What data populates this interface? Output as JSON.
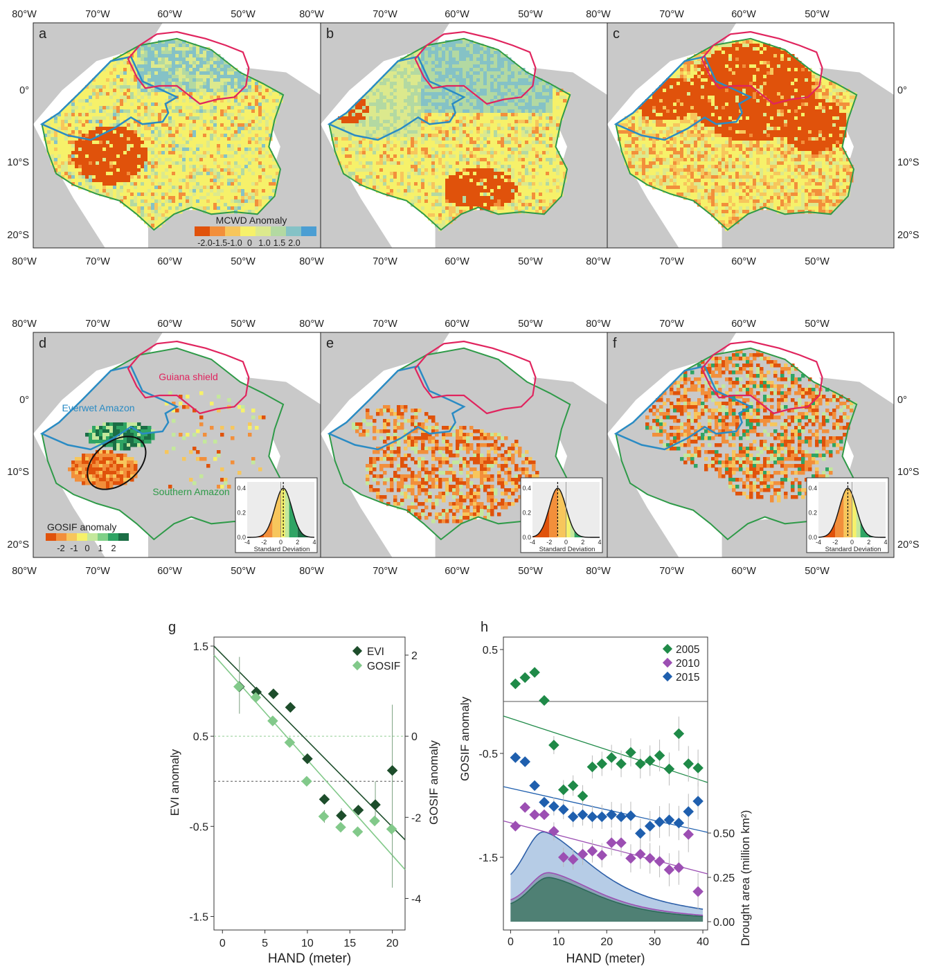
{
  "map_panels": {
    "letters": [
      "a",
      "b",
      "c",
      "d",
      "e",
      "f"
    ],
    "lon_ticks": [
      "80°W",
      "70°W",
      "60°W",
      "50°W"
    ],
    "lat_ticks": [
      "0°",
      "10°S",
      "20°S"
    ],
    "mcwd_legend": {
      "title": "MCWD Anomaly",
      "labels": [
        "-2.0",
        "-1.5",
        "-1.0",
        "0",
        "1.0",
        "1.5",
        "2.0"
      ]
    },
    "gosif_legend": {
      "title": "GOSIF anomaly",
      "labels": [
        "-2",
        "-1",
        "0",
        "1",
        "2"
      ]
    },
    "region_labels": {
      "guiana": "Guiana shield",
      "everwet": "Everwet Amazon",
      "southern": "Southern Amazon"
    },
    "inset": {
      "xlabel": "Standard Deviation",
      "xticks": [
        "-4",
        "-2",
        "0",
        "2",
        "4"
      ],
      "yticks": [
        "0.0",
        "0.2",
        "0.4"
      ]
    },
    "colors": {
      "land": "#c9c9c9",
      "guiana_border": "#e0245e",
      "everwet_border": "#2a8bc4",
      "southern_border": "#2e9a48"
    }
  },
  "chart_data": [
    {
      "type": "scatter",
      "panel": "g",
      "xlabel": "HAND (meter)",
      "ylabel": "EVI anomaly",
      "ylabel_right": "GOSIF anomaly",
      "xlim": [
        -1,
        21.5
      ],
      "ylim": [
        -1.65,
        1.6
      ],
      "x_ticks": [
        "0",
        "5",
        "10",
        "15",
        "20"
      ],
      "y_ticks": [
        "1.5",
        "0.5",
        "-0.5",
        "-1.5"
      ],
      "y_right_ticks": [
        "2",
        "0",
        "-2",
        "-4"
      ],
      "series": [
        {
          "name": "EVI",
          "color": "#1d4d2b",
          "x": [
            2,
            4,
            6,
            8,
            10,
            12,
            14,
            16,
            18,
            20
          ],
          "y": [
            1.05,
            0.99,
            0.97,
            0.82,
            0.25,
            -0.2,
            -0.38,
            -0.32,
            -0.26,
            0.12
          ]
        },
        {
          "name": "GOSIF",
          "color": "#82c98a",
          "x": [
            2,
            4,
            6,
            8,
            10,
            12,
            14,
            16,
            18,
            20
          ],
          "y": [
            1.05,
            0.93,
            0.67,
            0.43,
            0.0,
            -0.39,
            -0.51,
            -0.56,
            -0.44,
            -0.53
          ]
        }
      ]
    },
    {
      "type": "scatter",
      "panel": "h",
      "xlabel": "HAND (meter)",
      "ylabel": "GOSIF anomaly",
      "ylabel_right": "Drought area (million km²)",
      "xlim": [
        -1.5,
        41
      ],
      "ylim": [
        -2.2,
        0.62
      ],
      "x_ticks": [
        "0",
        "10",
        "20",
        "30",
        "40"
      ],
      "y_ticks": [
        "0.5",
        "-0.5",
        "-1.5"
      ],
      "y_right_ticks": [
        "0.50",
        "0.25",
        "0.00"
      ],
      "series": [
        {
          "name": "2005",
          "color": "#1f8a48",
          "x": [
            1,
            3,
            5,
            7,
            9,
            11,
            13,
            15,
            17,
            19,
            21,
            23,
            25,
            27,
            29,
            31,
            33,
            35,
            37,
            39
          ],
          "y": [
            0.17,
            0.23,
            0.28,
            0.01,
            -0.42,
            -0.85,
            -0.81,
            -0.91,
            -0.63,
            -0.6,
            -0.54,
            -0.6,
            -0.49,
            -0.6,
            -0.57,
            -0.52,
            -0.65,
            -0.31,
            -0.6,
            -0.64
          ]
        },
        {
          "name": "2010",
          "color": "#9c4fb3",
          "x": [
            1,
            3,
            5,
            7,
            9,
            11,
            13,
            15,
            17,
            19,
            21,
            23,
            25,
            27,
            29,
            31,
            33,
            35,
            37,
            39
          ],
          "y": [
            -1.2,
            -1.02,
            -1.09,
            -1.09,
            -1.25,
            -1.5,
            -1.52,
            -1.47,
            -1.44,
            -1.48,
            -1.36,
            -1.36,
            -1.51,
            -1.47,
            -1.51,
            -1.54,
            -1.62,
            -1.6,
            -1.28,
            -1.83
          ]
        },
        {
          "name": "2015",
          "color": "#1f5fae",
          "x": [
            1,
            3,
            5,
            7,
            9,
            11,
            13,
            15,
            17,
            19,
            21,
            23,
            25,
            27,
            29,
            31,
            33,
            35,
            37,
            39
          ],
          "y": [
            -0.54,
            -0.58,
            -0.81,
            -0.97,
            -1.01,
            -1.04,
            -1.11,
            -1.09,
            -1.11,
            -1.11,
            -1.09,
            -1.11,
            -1.1,
            -1.27,
            -1.2,
            -1.16,
            -1.14,
            -1.17,
            -1.06,
            -0.96
          ]
        }
      ]
    }
  ]
}
